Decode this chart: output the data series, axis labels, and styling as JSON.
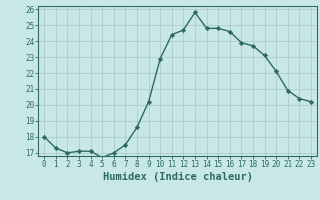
{
  "x": [
    0,
    1,
    2,
    3,
    4,
    5,
    6,
    7,
    8,
    9,
    10,
    11,
    12,
    13,
    14,
    15,
    16,
    17,
    18,
    19,
    20,
    21,
    22,
    23
  ],
  "y": [
    18.0,
    17.3,
    17.0,
    17.1,
    17.1,
    16.7,
    17.0,
    17.5,
    18.6,
    20.2,
    22.9,
    24.4,
    24.7,
    25.8,
    24.8,
    24.8,
    24.6,
    23.9,
    23.7,
    23.1,
    22.1,
    20.9,
    20.4,
    20.2
  ],
  "line_color": "#2e6b5e",
  "marker": "D",
  "marker_size": 2.2,
  "bg_color": "#c8e8e8",
  "grid_color": "#b0cccc",
  "xlabel": "Humidex (Indice chaleur)",
  "ylim": [
    17,
    26
  ],
  "xlim_lo": -0.5,
  "xlim_hi": 23.5,
  "yticks": [
    17,
    18,
    19,
    20,
    21,
    22,
    23,
    24,
    25,
    26
  ],
  "xticks": [
    0,
    1,
    2,
    3,
    4,
    5,
    6,
    7,
    8,
    9,
    10,
    11,
    12,
    13,
    14,
    15,
    16,
    17,
    18,
    19,
    20,
    21,
    22,
    23
  ],
  "tick_fontsize": 5.5,
  "xlabel_fontsize": 7.5,
  "line_width": 1.0
}
